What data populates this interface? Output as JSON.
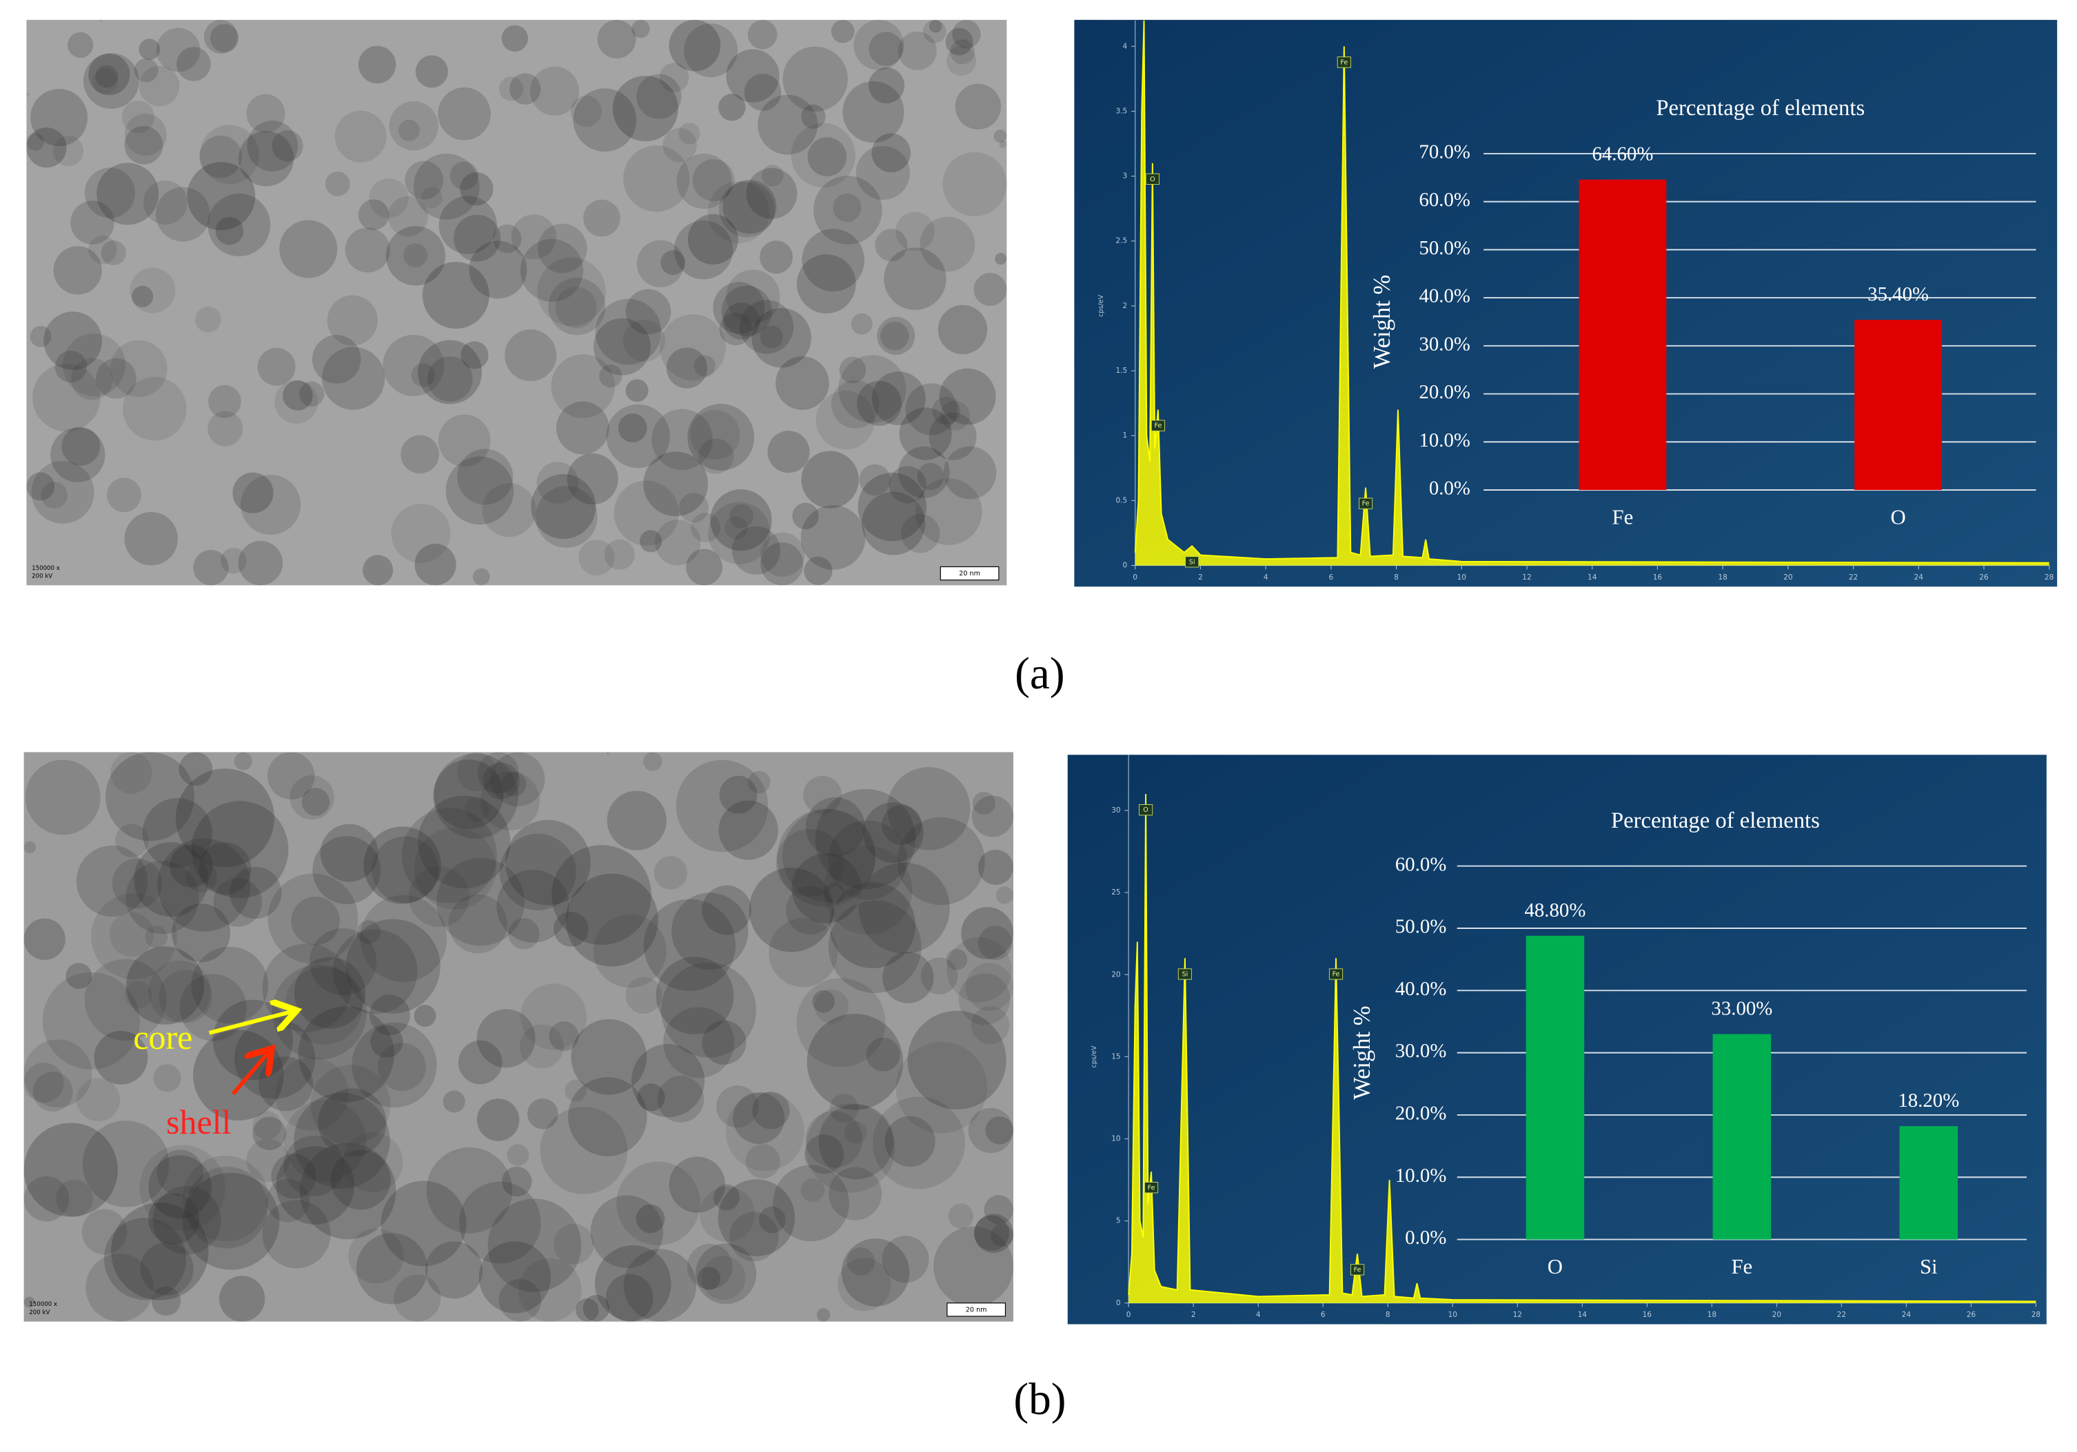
{
  "panel_labels": [
    "(a)",
    "(b)"
  ],
  "annotations": {
    "core": "core",
    "shell": "shell"
  },
  "tem_labels": {
    "scale": "20 nm",
    "magnification": "150000 x",
    "voltage": "200 kV"
  },
  "chart_data": [
    {
      "type": "line",
      "y_label": "cps/eV",
      "color": "#ffff00",
      "x": [
        0,
        0.1,
        0.2,
        0.27,
        0.35,
        0.45,
        0.53,
        0.6,
        0.7,
        0.8,
        1.0,
        1.5,
        1.74,
        2.0,
        4,
        6.2,
        6.4,
        6.6,
        6.9,
        7.06,
        7.2,
        7.9,
        8.05,
        8.2,
        8.8,
        8.9,
        9.0,
        10,
        28
      ],
      "values": [
        0.1,
        0.5,
        3.5,
        4.2,
        1.0,
        0.8,
        3.1,
        0.9,
        1.2,
        0.4,
        0.2,
        0.1,
        0.15,
        0.08,
        0.05,
        0.06,
        4.0,
        0.1,
        0.08,
        0.6,
        0.07,
        0.08,
        1.2,
        0.07,
        0.06,
        0.2,
        0.05,
        0.03,
        0.02
      ],
      "peak_labels": [
        {
          "text": "O",
          "x": 0.53
        },
        {
          "text": "Fe",
          "x": 0.7
        },
        {
          "text": "Si",
          "x": 1.74
        },
        {
          "text": "Fe",
          "x": 6.4
        },
        {
          "text": "Fe",
          "x": 7.06
        }
      ],
      "xlim": [
        0,
        28
      ],
      "xticks": [
        0,
        2,
        4,
        6,
        8,
        10,
        12,
        14,
        16,
        18,
        20,
        22,
        24,
        26,
        28
      ],
      "ylim": [
        0,
        4.2
      ],
      "yticks": [
        0,
        0.5,
        1,
        1.5,
        2,
        2.5,
        3,
        3.5,
        4
      ]
    },
    {
      "type": "bar",
      "title": "Percentage of elements",
      "y_label": "Weight %",
      "color": "#e00000",
      "categories": [
        "Fe",
        "O"
      ],
      "values": [
        64.6,
        35.4
      ],
      "value_labels": [
        "64.60%",
        "35.40%"
      ],
      "ylim": [
        0,
        70
      ],
      "yticks": [
        {
          "value": 0,
          "label": "0.0%"
        },
        {
          "value": 10,
          "label": "10.0%"
        },
        {
          "value": 20,
          "label": "20.0%"
        },
        {
          "value": 30,
          "label": "30.0%"
        },
        {
          "value": 40,
          "label": "40.0%"
        },
        {
          "value": 50,
          "label": "50.0%"
        },
        {
          "value": 60,
          "label": "60.0%"
        },
        {
          "value": 70,
          "label": "70.0%"
        }
      ],
      "grid": true
    },
    {
      "type": "line",
      "y_label": "cps/eV",
      "color": "#ffff00",
      "x": [
        0,
        0.1,
        0.2,
        0.27,
        0.35,
        0.45,
        0.53,
        0.6,
        0.7,
        0.8,
        1.0,
        1.5,
        1.74,
        1.9,
        4,
        6.2,
        6.4,
        6.6,
        6.9,
        7.06,
        7.2,
        7.9,
        8.05,
        8.2,
        8.8,
        8.9,
        9.0,
        10,
        28
      ],
      "values": [
        0.5,
        3,
        18,
        22,
        5,
        4,
        31,
        6,
        8,
        2,
        1,
        0.8,
        21,
        0.8,
        0.4,
        0.5,
        21,
        0.6,
        0.5,
        3,
        0.4,
        0.5,
        7.5,
        0.4,
        0.3,
        1.2,
        0.3,
        0.2,
        0.1
      ],
      "peak_labels": [
        {
          "text": "O",
          "x": 0.53
        },
        {
          "text": "Fe",
          "x": 0.7
        },
        {
          "text": "Si",
          "x": 1.74
        },
        {
          "text": "Fe",
          "x": 6.4
        },
        {
          "text": "Fe",
          "x": 7.06
        }
      ],
      "xlim": [
        0,
        28
      ],
      "xticks": [
        0,
        2,
        4,
        6,
        8,
        10,
        12,
        14,
        16,
        18,
        20,
        22,
        24,
        26,
        28
      ],
      "ylim": [
        0,
        33.4
      ],
      "yticks": [
        0,
        5,
        10,
        15,
        20,
        25,
        30
      ]
    },
    {
      "type": "bar",
      "title": "Percentage of elements",
      "y_label": "Weight %",
      "color": "#00b050",
      "categories": [
        "O",
        "Fe",
        "Si"
      ],
      "values": [
        48.8,
        33.0,
        18.2
      ],
      "value_labels": [
        "48.80%",
        "33.00%",
        "18.20%"
      ],
      "ylim": [
        0,
        60
      ],
      "yticks": [
        {
          "value": 0,
          "label": "0.0%"
        },
        {
          "value": 10,
          "label": "10.0%"
        },
        {
          "value": 20,
          "label": "20.0%"
        },
        {
          "value": 30,
          "label": "30.0%"
        },
        {
          "value": 40,
          "label": "40.0%"
        },
        {
          "value": 50,
          "label": "50.0%"
        },
        {
          "value": 60,
          "label": "60.0%"
        }
      ],
      "grid": true
    }
  ]
}
